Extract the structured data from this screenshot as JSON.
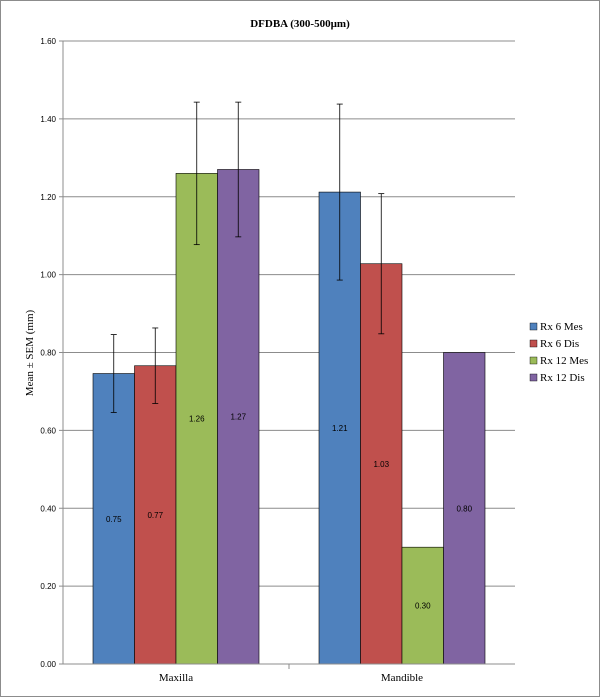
{
  "chart_data": {
    "type": "bar",
    "title": "DFDBA (300-500µm)",
    "ylabel": "Mean ± SEM (mm)",
    "xlabel": "",
    "ylim": [
      0,
      1.6
    ],
    "yticks": [
      "0.00",
      "0.20",
      "0.40",
      "0.60",
      "0.80",
      "1.00",
      "1.20",
      "1.40",
      "1.60"
    ],
    "grid": true,
    "legend_position": "right",
    "categories": [
      "Maxilla",
      "Mandible"
    ],
    "series": [
      {
        "name": "Rx 6 Mes",
        "color": "#4f81bd",
        "values": [
          0.746,
          1.212
        ],
        "labels": [
          "0.75",
          "1.21"
        ],
        "error": [
          0.1,
          0.226
        ]
      },
      {
        "name": "Rx 6 Dis",
        "color": "#c0504d",
        "values": [
          0.766,
          1.028
        ],
        "labels": [
          "0.77",
          "1.03"
        ],
        "error": [
          0.097,
          0.18
        ]
      },
      {
        "name": "Rx 12 Mes",
        "color": "#9bbb59",
        "values": [
          1.26,
          0.3
        ],
        "labels": [
          "1.26",
          "0.30"
        ],
        "error": [
          0.183,
          0
        ]
      },
      {
        "name": "Rx 12 Dis",
        "color": "#8064a2",
        "values": [
          1.27,
          0.8
        ],
        "labels": [
          "1.27",
          "0.80"
        ],
        "error": [
          0.173,
          0
        ]
      }
    ]
  }
}
